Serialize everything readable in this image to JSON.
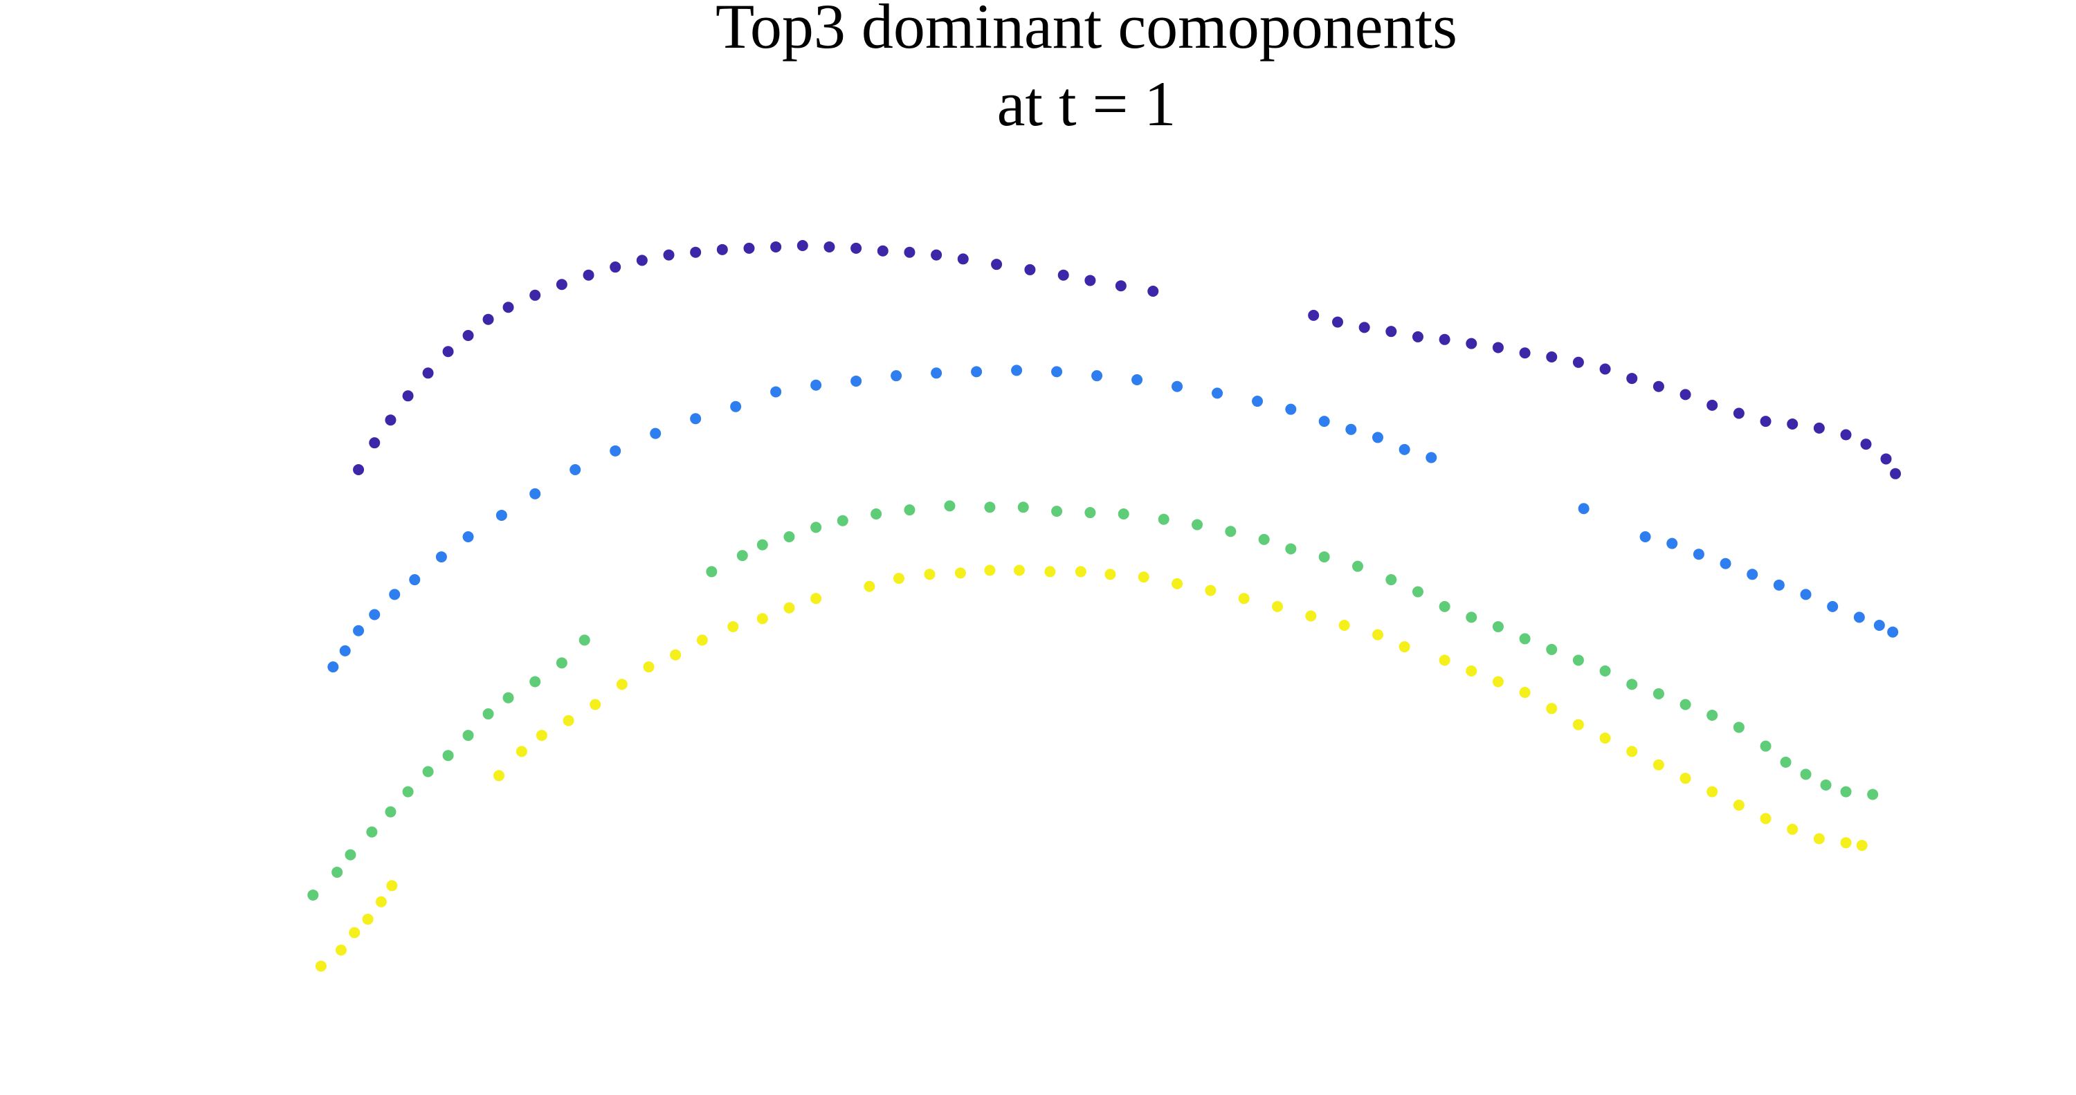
{
  "chart_data": {
    "type": "scatter",
    "title": "Top3 dominant comoponents",
    "subtitle": "at t = 1",
    "xlim": [
      0,
      1552
    ],
    "ylim": [
      816,
      0
    ],
    "series": [
      {
        "color": "#3d26a8",
        "x": [
          268,
          280,
          292,
          305,
          320,
          335,
          350,
          365,
          380,
          400,
          420,
          440,
          460,
          480,
          500,
          520,
          540,
          560,
          580,
          600,
          620,
          640,
          660,
          680,
          700,
          720,
          745,
          770,
          795,
          815,
          838,
          862,
          982,
          1000,
          1020,
          1040,
          1060,
          1080,
          1100,
          1120,
          1140,
          1160,
          1180,
          1200,
          1220,
          1240,
          1260,
          1280,
          1300,
          1320,
          1340,
          1360,
          1380,
          1395,
          1410,
          1417
        ],
        "values": [
          350,
          330,
          313,
          295,
          278,
          262,
          250,
          238,
          229,
          220,
          212,
          205,
          199,
          194,
          190,
          188,
          186,
          185,
          184,
          183,
          184,
          185,
          187,
          188,
          190,
          193,
          197,
          201,
          205,
          209,
          213,
          217,
          235,
          240,
          244,
          247,
          251,
          253,
          256,
          259,
          263,
          266,
          270,
          275,
          282,
          288,
          294,
          302,
          308,
          314,
          316,
          319,
          324,
          331,
          342,
          353
        ]
      },
      {
        "color": "#2e7ef0",
        "x": [
          249,
          258,
          268,
          280,
          295,
          310,
          330,
          350,
          375,
          400,
          430,
          460,
          490,
          520,
          550,
          580,
          610,
          640,
          670,
          700,
          730,
          760,
          790,
          820,
          850,
          880,
          910,
          940,
          965,
          990,
          1010,
          1030,
          1050,
          1070,
          1184,
          1230,
          1250,
          1270,
          1290,
          1310,
          1330,
          1350,
          1370,
          1390,
          1405,
          1415
        ],
        "values": [
          497,
          485,
          470,
          458,
          443,
          432,
          415,
          400,
          384,
          368,
          350,
          336,
          323,
          312,
          303,
          292,
          287,
          284,
          280,
          278,
          277,
          276,
          277,
          280,
          283,
          288,
          293,
          299,
          305,
          314,
          320,
          326,
          335,
          341,
          379,
          400,
          405,
          413,
          420,
          428,
          436,
          443,
          452,
          460,
          466,
          471
        ]
      },
      {
        "color": "#5fcc77",
        "x": [
          234,
          252,
          262,
          278,
          292,
          305,
          320,
          335,
          350,
          365,
          380,
          400,
          420,
          437,
          532,
          555,
          570,
          590,
          610,
          630,
          655,
          680,
          710,
          740,
          765,
          790,
          815,
          840,
          870,
          895,
          920,
          945,
          965,
          990,
          1015,
          1040,
          1060,
          1080,
          1100,
          1120,
          1140,
          1160,
          1180,
          1200,
          1220,
          1240,
          1260,
          1280,
          1300,
          1320,
          1335,
          1350,
          1365,
          1380,
          1400
        ],
        "values": [
          667,
          650,
          637,
          620,
          605,
          590,
          575,
          563,
          548,
          532,
          520,
          508,
          494,
          477,
          426,
          414,
          406,
          400,
          393,
          388,
          383,
          380,
          377,
          378,
          378,
          381,
          382,
          383,
          387,
          391,
          396,
          402,
          409,
          415,
          422,
          432,
          441,
          452,
          460,
          467,
          476,
          484,
          492,
          500,
          510,
          517,
          525,
          533,
          542,
          556,
          568,
          577,
          585,
          590,
          592
        ]
      },
      {
        "color": "#f5f01c",
        "x": [
          240,
          255,
          265,
          275,
          285,
          293,
          373,
          390,
          405,
          425,
          445,
          465,
          485,
          505,
          525,
          548,
          570,
          590,
          610,
          650,
          672,
          695,
          718,
          740,
          762,
          785,
          808,
          830,
          855,
          880,
          905,
          930,
          955,
          980,
          1005,
          1030,
          1050,
          1080,
          1100,
          1120,
          1140,
          1160,
          1180,
          1200,
          1220,
          1240,
          1260,
          1280,
          1300,
          1320,
          1340,
          1360,
          1380,
          1392
        ],
        "values": [
          720,
          708,
          695,
          685,
          672,
          660,
          578,
          560,
          548,
          537,
          525,
          510,
          497,
          488,
          477,
          467,
          461,
          453,
          446,
          437,
          431,
          428,
          427,
          425,
          425,
          426,
          426,
          428,
          430,
          435,
          440,
          446,
          452,
          459,
          466,
          473,
          482,
          492,
          500,
          508,
          516,
          528,
          540,
          550,
          560,
          570,
          580,
          590,
          600,
          610,
          618,
          625,
          628,
          630
        ]
      }
    ]
  }
}
